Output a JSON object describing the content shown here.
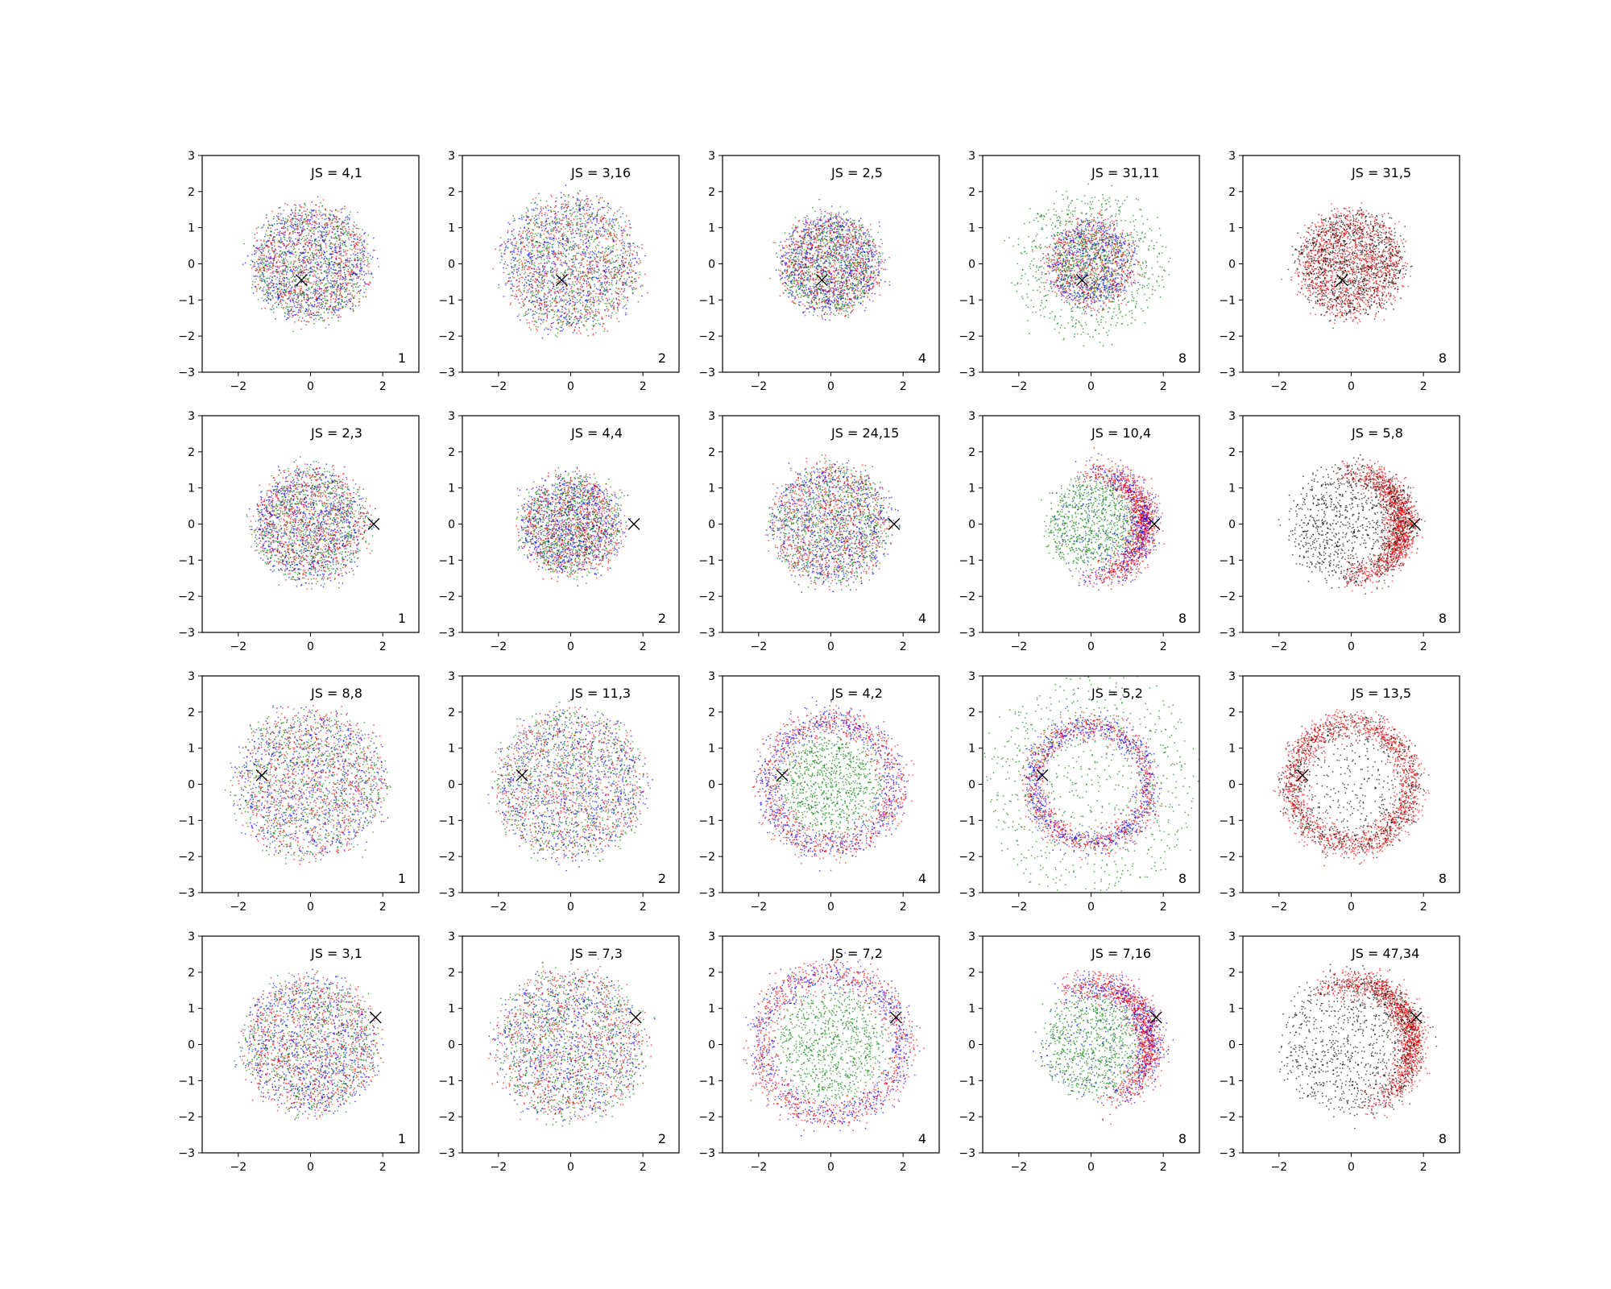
{
  "chart_data": {
    "type": "scatter",
    "layout": "4 rows x 5 columns grid of scatter panels",
    "xlim": [
      -3,
      3
    ],
    "ylim": [
      -3,
      3
    ],
    "xticks": [
      -2,
      0,
      2
    ],
    "yticks": [
      -3,
      -2,
      -1,
      0,
      1,
      2,
      3
    ],
    "xtick_labels": [
      "−2",
      "0",
      "2"
    ],
    "ytick_labels": [
      "−3",
      "−2",
      "−1",
      "0",
      "1",
      "2",
      "3"
    ],
    "grid": false,
    "legend": false,
    "point_colors": {
      "red": "#ff0000",
      "blue": "#0000ff",
      "green": "#008000",
      "black": "#000000"
    },
    "marker_color": "#000000",
    "panels": [
      {
        "row": 0,
        "col": 0,
        "title": "JS = 4,1",
        "corner_label": "1",
        "marker": [
          -0.25,
          -0.45
        ],
        "pattern": "blob",
        "radius": 1.7,
        "colors": [
          "red",
          "blue",
          "green"
        ]
      },
      {
        "row": 0,
        "col": 1,
        "title": "JS = 3,16",
        "corner_label": "2",
        "marker": [
          -0.25,
          -0.45
        ],
        "pattern": "blob",
        "radius": 2.0,
        "colors": [
          "red",
          "blue",
          "green"
        ]
      },
      {
        "row": 0,
        "col": 2,
        "title": "JS = 2,5",
        "corner_label": "4",
        "marker": [
          -0.25,
          -0.45
        ],
        "pattern": "blob",
        "radius": 1.45,
        "colors": [
          "red",
          "blue",
          "green"
        ]
      },
      {
        "row": 0,
        "col": 3,
        "title": "JS = 31,11",
        "corner_label": "8",
        "marker": [
          -0.25,
          -0.45
        ],
        "pattern": "core_halo",
        "radius": 1.45,
        "colors": [
          "red",
          "blue",
          "green"
        ]
      },
      {
        "row": 0,
        "col": 4,
        "title": "JS = 31,5",
        "corner_label": "8",
        "marker": [
          -0.25,
          -0.45
        ],
        "pattern": "blob",
        "radius": 1.55,
        "colors": [
          "red",
          "black"
        ]
      },
      {
        "row": 1,
        "col": 0,
        "title": "JS = 2,3",
        "corner_label": "1",
        "marker": [
          1.75,
          0.0
        ],
        "pattern": "blob",
        "radius": 1.65,
        "colors": [
          "red",
          "blue",
          "green"
        ]
      },
      {
        "row": 1,
        "col": 1,
        "title": "JS = 4,4",
        "corner_label": "2",
        "marker": [
          1.75,
          0.0
        ],
        "pattern": "blob",
        "radius": 1.45,
        "colors": [
          "red",
          "blue",
          "green"
        ]
      },
      {
        "row": 1,
        "col": 2,
        "title": "JS = 24,15",
        "corner_label": "4",
        "marker": [
          1.75,
          0.0
        ],
        "pattern": "blob",
        "radius": 1.75,
        "colors": [
          "red",
          "blue",
          "green"
        ]
      },
      {
        "row": 1,
        "col": 3,
        "title": "JS = 10,4",
        "corner_label": "8",
        "marker": [
          1.75,
          0.0
        ],
        "pattern": "crescent",
        "radius": 1.75,
        "colors": [
          "red",
          "blue",
          "green"
        ]
      },
      {
        "row": 1,
        "col": 4,
        "title": "JS = 5,8",
        "corner_label": "8",
        "marker": [
          1.75,
          0.0
        ],
        "pattern": "crescent",
        "radius": 1.7,
        "colors": [
          "red",
          "black"
        ]
      },
      {
        "row": 2,
        "col": 0,
        "title": "JS = 8,8",
        "corner_label": "1",
        "marker": [
          -1.35,
          0.25
        ],
        "pattern": "blob",
        "radius": 2.2,
        "colors": [
          "red",
          "blue",
          "green"
        ]
      },
      {
        "row": 2,
        "col": 1,
        "title": "JS = 11,3",
        "corner_label": "2",
        "marker": [
          -1.35,
          0.25
        ],
        "pattern": "blob",
        "radius": 2.2,
        "colors": [
          "red",
          "blue",
          "green"
        ]
      },
      {
        "row": 2,
        "col": 2,
        "title": "JS = 4,2",
        "corner_label": "4",
        "marker": [
          -1.35,
          0.25
        ],
        "pattern": "ring_fill",
        "radius": 2.05,
        "colors": [
          "red",
          "blue",
          "green"
        ]
      },
      {
        "row": 2,
        "col": 3,
        "title": "JS = 5,2",
        "corner_label": "8",
        "marker": [
          -1.35,
          0.25
        ],
        "pattern": "ring_halo",
        "radius": 1.75,
        "colors": [
          "red",
          "blue",
          "green"
        ]
      },
      {
        "row": 2,
        "col": 4,
        "title": "JS = 13,5",
        "corner_label": "8",
        "marker": [
          -1.35,
          0.25
        ],
        "pattern": "ring",
        "radius": 1.8,
        "colors": [
          "red",
          "black"
        ]
      },
      {
        "row": 3,
        "col": 0,
        "title": "JS = 3,1",
        "corner_label": "1",
        "marker": [
          1.8,
          0.75
        ],
        "pattern": "blob",
        "radius": 2.0,
        "colors": [
          "red",
          "blue",
          "green"
        ]
      },
      {
        "row": 3,
        "col": 1,
        "title": "JS = 7,3",
        "corner_label": "2",
        "marker": [
          1.8,
          0.75
        ],
        "pattern": "blob",
        "radius": 2.2,
        "colors": [
          "red",
          "blue",
          "green"
        ]
      },
      {
        "row": 3,
        "col": 2,
        "title": "JS = 7,2",
        "corner_label": "4",
        "marker": [
          1.8,
          0.75
        ],
        "pattern": "ring_fill",
        "radius": 2.3,
        "colors": [
          "red",
          "blue",
          "green"
        ]
      },
      {
        "row": 3,
        "col": 3,
        "title": "JS = 7,16",
        "corner_label": "8",
        "marker": [
          1.8,
          0.75
        ],
        "pattern": "crescent",
        "radius": 1.95,
        "colors": [
          "red",
          "blue",
          "green"
        ]
      },
      {
        "row": 3,
        "col": 4,
        "title": "JS = 47,34",
        "corner_label": "8",
        "marker": [
          1.8,
          0.75
        ],
        "pattern": "crescent",
        "radius": 2.0,
        "colors": [
          "red",
          "black"
        ]
      }
    ]
  }
}
